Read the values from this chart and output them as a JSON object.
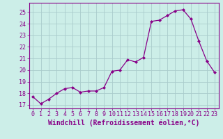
{
  "x": [
    0,
    1,
    2,
    3,
    4,
    5,
    6,
    7,
    8,
    9,
    10,
    11,
    12,
    13,
    14,
    15,
    16,
    17,
    18,
    19,
    20,
    21,
    22,
    23
  ],
  "y": [
    17.7,
    17.1,
    17.5,
    18.0,
    18.4,
    18.5,
    18.1,
    18.2,
    18.2,
    18.5,
    19.9,
    20.0,
    20.9,
    20.7,
    21.1,
    24.2,
    24.3,
    24.7,
    25.1,
    25.2,
    24.4,
    22.5,
    20.8,
    19.8
  ],
  "line_color": "#880088",
  "marker": "D",
  "marker_size": 2.0,
  "bg_color": "#cceee8",
  "grid_color": "#aacccc",
  "xlabel": "Windchill (Refroidissement éolien,°C)",
  "ylabel_ticks": [
    17,
    18,
    19,
    20,
    21,
    22,
    23,
    24,
    25
  ],
  "xlim": [
    -0.5,
    23.5
  ],
  "ylim": [
    16.7,
    25.8
  ],
  "tick_label_color": "#880088",
  "xlabel_color": "#880088",
  "tick_fontsize": 6.0,
  "xlabel_fontsize": 7.0
}
